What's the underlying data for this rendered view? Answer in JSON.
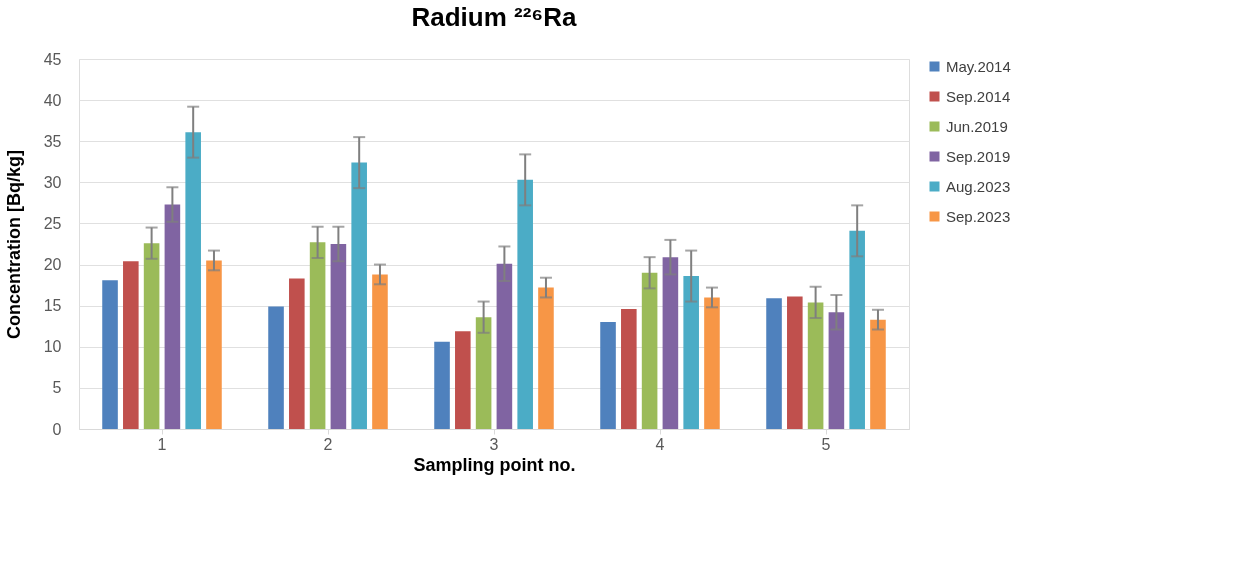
{
  "chart_data": {
    "type": "bar",
    "title": "Radium ²²⁶Ra",
    "xlabel": "Sampling point no.",
    "ylabel": "Concentration  [Bq/kg]",
    "categories": [
      "1",
      "2",
      "3",
      "4",
      "5"
    ],
    "series": [
      {
        "name": "May.2014",
        "color": "#4f81bd",
        "values": [
          18.1,
          14.9,
          10.6,
          13.0,
          15.9
        ]
      },
      {
        "name": "Sep.2014",
        "color": "#c0504d",
        "values": [
          20.4,
          18.3,
          11.9,
          14.6,
          16.1
        ]
      },
      {
        "name": "Jun.2019",
        "color": "#9bbb59",
        "values": [
          22.6,
          22.7,
          13.6,
          19.0,
          15.4
        ],
        "errors": [
          1.9,
          1.9,
          1.9,
          1.9,
          1.9
        ]
      },
      {
        "name": "Sep.2019",
        "color": "#8064a2",
        "values": [
          27.3,
          22.5,
          20.1,
          20.9,
          14.2
        ],
        "errors": [
          2.1,
          2.1,
          2.1,
          2.1,
          2.1
        ]
      },
      {
        "name": "Aug.2023",
        "color": "#4bacc6",
        "values": [
          36.1,
          32.4,
          30.3,
          18.6,
          24.1
        ],
        "errors": [
          3.1,
          3.1,
          3.1,
          3.1,
          3.1
        ]
      },
      {
        "name": "Sep.2023",
        "color": "#f79646",
        "values": [
          20.5,
          18.8,
          17.2,
          16.0,
          13.3
        ],
        "errors": [
          1.2,
          1.2,
          1.2,
          1.2,
          1.2
        ]
      }
    ],
    "ylim": [
      0,
      45
    ],
    "yticks": [
      0,
      5,
      10,
      15,
      20,
      25,
      30,
      35,
      40,
      45
    ],
    "grid": "y",
    "legend": "right"
  }
}
